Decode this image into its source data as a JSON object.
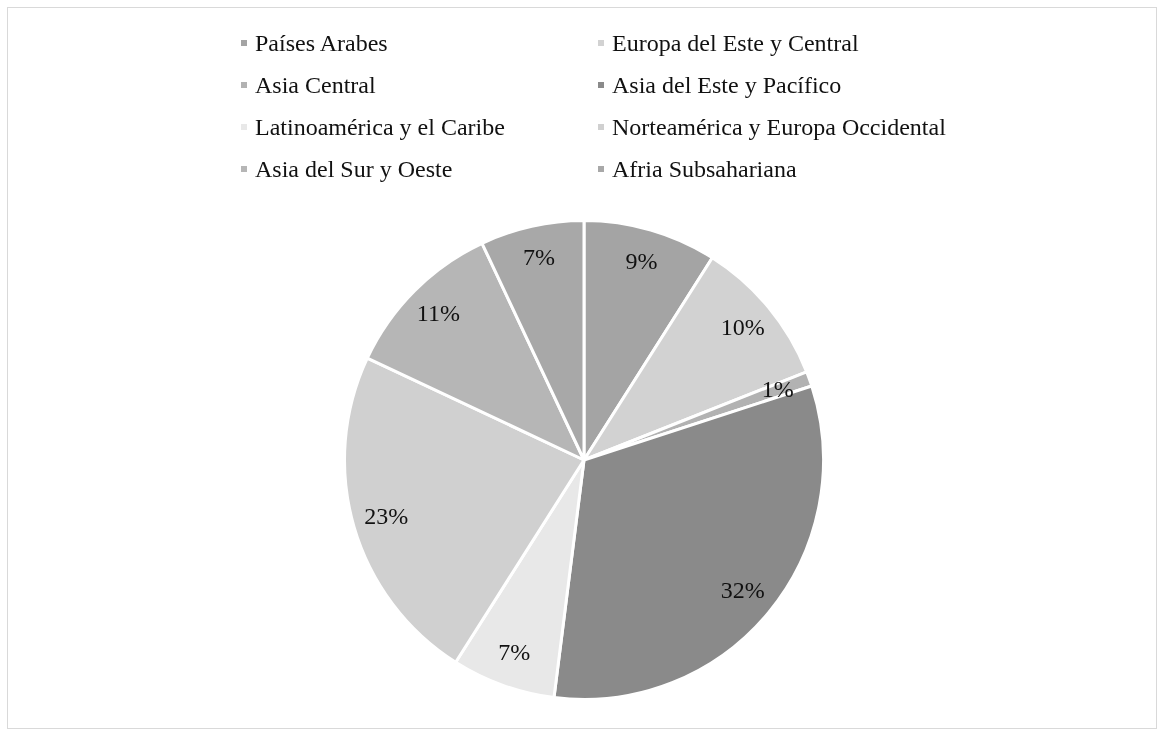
{
  "chart_data": {
    "type": "pie",
    "categories": [
      "Países Arabes",
      "Europa del Este y Central",
      "Asia Central",
      "Asia del Este y Pacífico",
      "Latinoamérica y el Caribe",
      "Norteamérica y Europa Occidental",
      "Asia del Sur y Oeste",
      "Afria Subsahariana"
    ],
    "values": [
      9,
      10,
      1,
      32,
      7,
      23,
      11,
      7
    ],
    "colors": [
      "#a4a4a4",
      "#d2d2d2",
      "#b2b2b2",
      "#8a8a8a",
      "#e8e8e8",
      "#d0d0d0",
      "#b6b6b6",
      "#a8a8a8"
    ],
    "value_labels": [
      "9%",
      "10%",
      "1%",
      "32%",
      "7%",
      "23%",
      "11%",
      "7%"
    ],
    "legend": "top"
  }
}
